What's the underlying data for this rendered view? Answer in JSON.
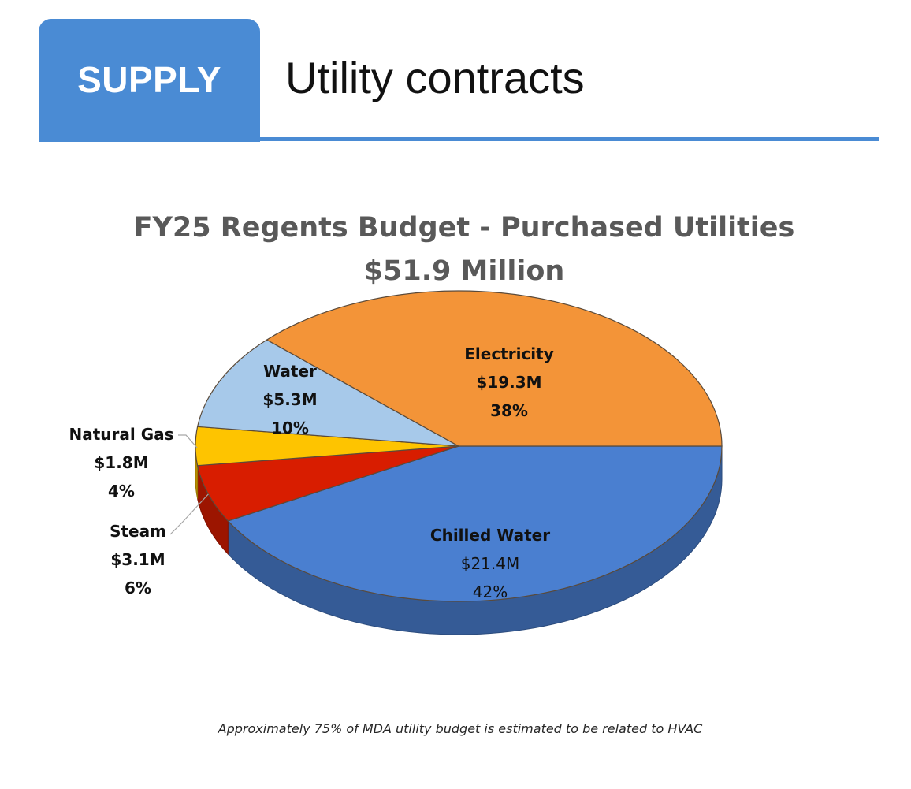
{
  "header": {
    "section_tab": "SUPPLY",
    "title": "Utility contracts"
  },
  "colors": {
    "accent": "#4a8bd4",
    "chilled_water": "#4a7fd0",
    "electricity": "#f39438",
    "water": "#a7c9ea",
    "natural_gas": "#fec400",
    "steam": "#d81d00"
  },
  "chart_data": {
    "type": "pie",
    "title": "FY25 Regents Budget - Purchased Utilities",
    "subtitle": "$51.9 Million",
    "slices": [
      {
        "name": "Chilled Water",
        "amount": "$21.4M",
        "percent_label": "42%",
        "percent": 42,
        "value": 21.4,
        "color": "#4a7fd0"
      },
      {
        "name": "Steam",
        "amount": "$3.1M",
        "percent_label": "6%",
        "percent": 6,
        "value": 3.1,
        "color": "#d81d00"
      },
      {
        "name": "Natural Gas",
        "amount": "$1.8M",
        "percent_label": "4%",
        "percent": 4,
        "value": 1.8,
        "color": "#fec400"
      },
      {
        "name": "Water",
        "amount": "$5.3M",
        "percent_label": "10%",
        "percent": 10,
        "value": 5.3,
        "color": "#a7c9ea"
      },
      {
        "name": "Electricity",
        "amount": "$19.3M",
        "percent_label": "38%",
        "percent": 38,
        "value": 19.3,
        "color": "#f39438"
      }
    ],
    "footnote": "Approximately 75% of MDA utility budget is estimated to be related to HVAC"
  }
}
